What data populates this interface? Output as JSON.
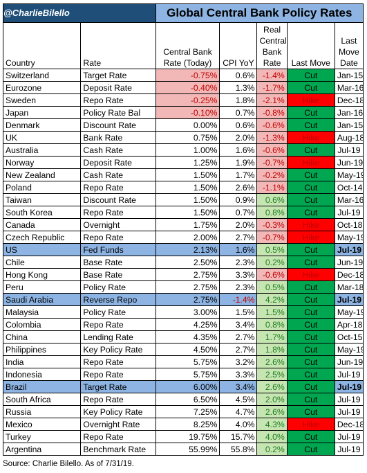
{
  "title_bar": {
    "handle": "@CharlieBilello",
    "title": "Global Central Bank Policy Rates"
  },
  "headers": {
    "country": "Country",
    "rate": "Rate",
    "cb_rate": "Central Bank Rate (Today)",
    "cpi": "CPI YoY",
    "real": "Real Central Bank Rate",
    "last_move": "Last Move",
    "last_move_date": "Last Move Date"
  },
  "rows": [
    {
      "country": "Switzerland",
      "rate": "Target Rate",
      "cb": "-0.75%",
      "cpi": "0.6%",
      "real": "-1.4%",
      "move": "Cut",
      "date": "Jan-15"
    },
    {
      "country": "Eurozone",
      "rate": "Deposit Rate",
      "cb": "-0.40%",
      "cpi": "1.3%",
      "real": "-1.7%",
      "move": "Cut",
      "date": "Mar-16"
    },
    {
      "country": "Sweden",
      "rate": "Repo Rate",
      "cb": "-0.25%",
      "cpi": "1.8%",
      "real": "-2.1%",
      "move": "Hike",
      "date": "Dec-18"
    },
    {
      "country": "Japan",
      "rate": "Policy Rate Bal",
      "cb": "-0.10%",
      "cpi": "0.7%",
      "real": "-0.8%",
      "move": "Cut",
      "date": "Jan-16"
    },
    {
      "country": "Denmark",
      "rate": "Discount Rate",
      "cb": "0.00%",
      "cpi": "0.6%",
      "real": "-0.6%",
      "move": "Cut",
      "date": "Jan-15"
    },
    {
      "country": "UK",
      "rate": "Bank Rate",
      "cb": "0.75%",
      "cpi": "2.0%",
      "real": "-1.3%",
      "move": "Hike",
      "date": "Aug-18"
    },
    {
      "country": "Australia",
      "rate": "Cash Rate",
      "cb": "1.00%",
      "cpi": "1.6%",
      "real": "-0.6%",
      "move": "Cut",
      "date": "Jul-19"
    },
    {
      "country": "Norway",
      "rate": "Deposit Rate",
      "cb": "1.25%",
      "cpi": "1.9%",
      "real": "-0.7%",
      "move": "Hike",
      "date": "Jun-19"
    },
    {
      "country": "New Zealand",
      "rate": "Cash Rate",
      "cb": "1.50%",
      "cpi": "1.7%",
      "real": "-0.2%",
      "move": "Cut",
      "date": "May-19"
    },
    {
      "country": "Poland",
      "rate": "Repo Rate",
      "cb": "1.50%",
      "cpi": "2.6%",
      "real": "-1.1%",
      "move": "Cut",
      "date": "Oct-14"
    },
    {
      "country": "Taiwan",
      "rate": "Discount Rate",
      "cb": "1.50%",
      "cpi": "0.9%",
      "real": "0.6%",
      "move": "Cut",
      "date": "Mar-16"
    },
    {
      "country": "South Korea",
      "rate": "Repo Rate",
      "cb": "1.50%",
      "cpi": "0.7%",
      "real": "0.8%",
      "move": "Cut",
      "date": "Jul-19"
    },
    {
      "country": "Canada",
      "rate": "Overnight",
      "cb": "1.75%",
      "cpi": "2.0%",
      "real": "-0.3%",
      "move": "Hike",
      "date": "Oct-18"
    },
    {
      "country": "Czech Republic",
      "rate": "Repo Rate",
      "cb": "2.00%",
      "cpi": "2.7%",
      "real": "-0.7%",
      "move": "Hike",
      "date": "May-19"
    },
    {
      "country": "US",
      "rate": "Fed Funds",
      "cb": "2.13%",
      "cpi": "1.6%",
      "real": "0.5%",
      "move": "Cut",
      "date": "Jul-19",
      "hl": true
    },
    {
      "country": "Chile",
      "rate": "Base Rate",
      "cb": "2.50%",
      "cpi": "2.3%",
      "real": "0.2%",
      "move": "Cut",
      "date": "Jun-19"
    },
    {
      "country": "Hong Kong",
      "rate": "Base Rate",
      "cb": "2.75%",
      "cpi": "3.3%",
      "real": "-0.6%",
      "move": "Hike",
      "date": "Dec-18"
    },
    {
      "country": "Peru",
      "rate": "Policy Rate",
      "cb": "2.75%",
      "cpi": "2.3%",
      "real": "0.5%",
      "move": "Cut",
      "date": "Mar-18"
    },
    {
      "country": "Saudi Arabia",
      "rate": "Reverse Repo",
      "cb": "2.75%",
      "cpi": "-1.4%",
      "real": "4.2%",
      "move": "Cut",
      "date": "Jul-19",
      "hl": true
    },
    {
      "country": "Malaysia",
      "rate": "Policy Rate",
      "cb": "3.00%",
      "cpi": "1.5%",
      "real": "1.5%",
      "move": "Cut",
      "date": "May-19"
    },
    {
      "country": "Colombia",
      "rate": "Repo Rate",
      "cb": "4.25%",
      "cpi": "3.4%",
      "real": "0.8%",
      "move": "Cut",
      "date": "Apr-18"
    },
    {
      "country": "China",
      "rate": "Lending Rate",
      "cb": "4.35%",
      "cpi": "2.7%",
      "real": "1.7%",
      "move": "Cut",
      "date": "Oct-15"
    },
    {
      "country": "Philippines",
      "rate": "Key Policy Rate",
      "cb": "4.50%",
      "cpi": "2.7%",
      "real": "1.8%",
      "move": "Cut",
      "date": "May-19"
    },
    {
      "country": "India",
      "rate": "Repo Rate",
      "cb": "5.75%",
      "cpi": "3.2%",
      "real": "2.6%",
      "move": "Cut",
      "date": "Jun-19"
    },
    {
      "country": "Indonesia",
      "rate": "Repo Rate",
      "cb": "5.75%",
      "cpi": "3.3%",
      "real": "2.5%",
      "move": "Cut",
      "date": "Jul-19"
    },
    {
      "country": "Brazil",
      "rate": "Target Rate",
      "cb": "6.00%",
      "cpi": "3.4%",
      "real": "2.6%",
      "move": "Cut",
      "date": "Jul-19",
      "hl": true
    },
    {
      "country": "South Africa",
      "rate": "Repo Rate",
      "cb": "6.50%",
      "cpi": "4.5%",
      "real": "2.0%",
      "move": "Cut",
      "date": "Jul-19"
    },
    {
      "country": "Russia",
      "rate": "Key Policy Rate",
      "cb": "7.25%",
      "cpi": "4.7%",
      "real": "2.6%",
      "move": "Cut",
      "date": "Jul-19"
    },
    {
      "country": "Mexico",
      "rate": "Overnight Rate",
      "cb": "8.25%",
      "cpi": "4.0%",
      "real": "4.3%",
      "move": "Hike",
      "date": "Dec-18"
    },
    {
      "country": "Turkey",
      "rate": "Repo Rate",
      "cb": "19.75%",
      "cpi": "15.7%",
      "real": "4.0%",
      "move": "Cut",
      "date": "Jul-19"
    },
    {
      "country": "Argentina",
      "rate": "Benchmark Rate",
      "cb": "55.99%",
      "cpi": "55.8%",
      "real": "0.2%",
      "move": "Cut",
      "date": "Jul-19"
    }
  ],
  "footer": "Source: Charlie Bilello. As of 7/31/19.",
  "colors": {
    "handle_bg": "#1f4e79",
    "title_bg": "#8db4e2",
    "cut_green": "#00a650",
    "hike_red": "#ff0000",
    "neg_bg": "#f2b8b8",
    "pos_bg": "#c6e5b3",
    "highlight_row": "#8db4e2"
  }
}
